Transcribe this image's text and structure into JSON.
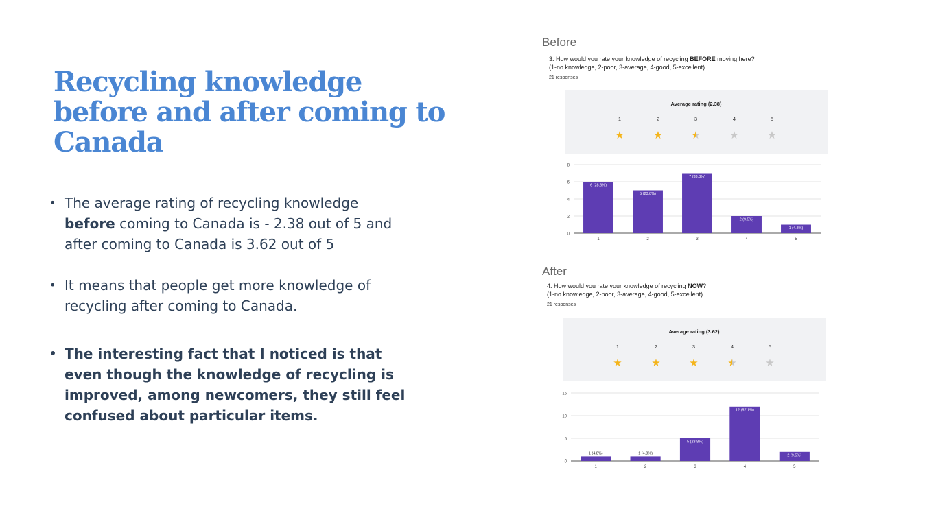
{
  "slide": {
    "title": "Recycling knowledge before and after coming to Canada",
    "bullet1_a": "The average rating of recycling knowledge ",
    "bullet1_bold": "before",
    "bullet1_b": " coming to Canada is - 2.38 out of 5 and after coming to Canada is 3.62 out of 5",
    "bullet2": "It means that people get more knowledge of recycling after coming to Canada.",
    "bullet3": "The interesting fact that I noticed is that even though the knowledge of recycling is improved, among newcomers, they still feel confused about particular items."
  },
  "before": {
    "label": "Before",
    "q_a": "3. How would you rate your knowledge of recycling ",
    "q_u": "BEFORE",
    "q_b": " moving here?",
    "scale": "(1-no knowledge, 2-poor, 3-average, 4-good, 5-excellent)",
    "responses": "21 responses",
    "rating_title": "Average rating (2.38)",
    "rating": 2.38,
    "star_labels": [
      "1",
      "2",
      "3",
      "4",
      "5"
    ]
  },
  "after": {
    "label": "After",
    "q_a": "4. How would you rate your knowledge of recycling ",
    "q_u": "NOW",
    "q_b": "?",
    "scale": "(1-no knowledge, 2-poor, 3-average, 4-good, 5-excellent)",
    "responses": "21 responses",
    "rating_title": "Average rating (3.62)",
    "rating": 3.62,
    "star_labels": [
      "1",
      "2",
      "3",
      "4",
      "5"
    ]
  },
  "colors": {
    "bar": "#5e3db3",
    "star_full": "#f4b41a",
    "star_empty": "#c8c8c8"
  },
  "chart_data": [
    {
      "type": "bar",
      "title": "",
      "categories": [
        "1",
        "2",
        "3",
        "4",
        "5"
      ],
      "values": [
        6,
        5,
        7,
        2,
        1
      ],
      "data_labels": [
        "6 (28.6%)",
        "5 (23.8%)",
        "7 (33.3%)",
        "2 (9.5%)",
        "1 (4.8%)"
      ],
      "ylim": [
        0,
        8
      ],
      "yticks": [
        "0",
        "2",
        "4",
        "6",
        "8"
      ],
      "xlabel": "",
      "ylabel": ""
    },
    {
      "type": "bar",
      "title": "",
      "categories": [
        "1",
        "2",
        "3",
        "4",
        "5"
      ],
      "values": [
        1,
        1,
        5,
        12,
        2
      ],
      "data_labels": [
        "1 (4.8%)",
        "1 (4.8%)",
        "5 (23.8%)",
        "12 (57.1%)",
        "2 (9.5%)"
      ],
      "ylim": [
        0,
        15
      ],
      "yticks": [
        "0",
        "5",
        "10",
        "15"
      ],
      "xlabel": "",
      "ylabel": ""
    }
  ]
}
